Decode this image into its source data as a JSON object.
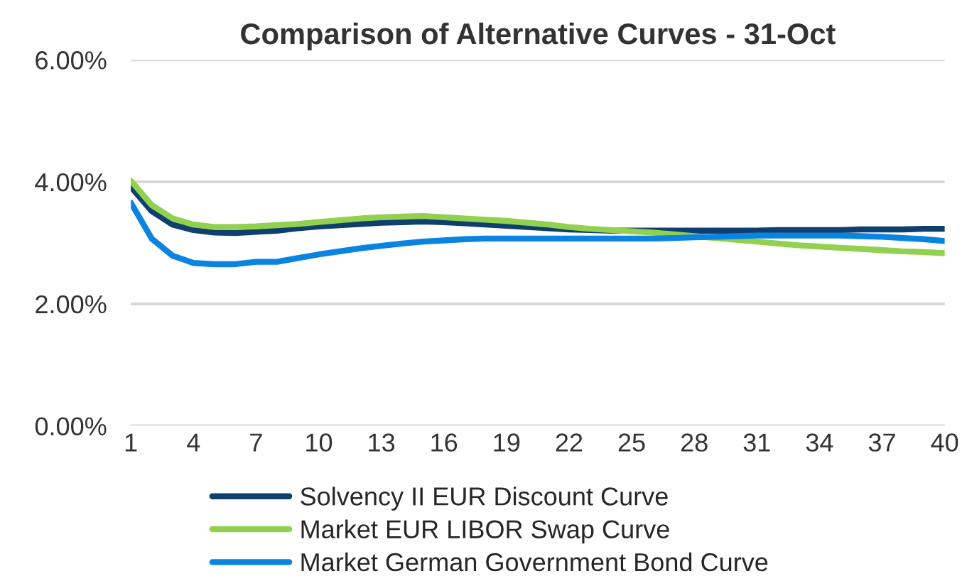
{
  "chart_data": {
    "type": "line",
    "title": "Comparison of Alternative Curves - 31-Oct",
    "categories": [
      "1",
      null,
      null,
      "4",
      null,
      null,
      "7",
      null,
      null,
      "10",
      null,
      null,
      "13",
      null,
      null,
      "16",
      null,
      null,
      "19",
      null,
      null,
      "22",
      null,
      null,
      "25",
      null,
      null,
      "28",
      null,
      null,
      "31",
      null,
      null,
      "34",
      null,
      null,
      "37",
      null,
      null,
      "40"
    ],
    "series": [
      {
        "name": "Solvency II EUR Discount Curve",
        "color": "#0e3f6e",
        "values": [
          3.92,
          3.52,
          3.3,
          3.21,
          3.17,
          3.16,
          3.18,
          3.2,
          3.24,
          3.27,
          3.29,
          3.31,
          3.33,
          3.34,
          3.35,
          3.34,
          3.32,
          3.3,
          3.28,
          3.26,
          3.24,
          3.22,
          3.21,
          3.2,
          3.2,
          3.2,
          3.2,
          3.2,
          3.2,
          3.2,
          3.2,
          3.21,
          3.21,
          3.21,
          3.21,
          3.22,
          3.22,
          3.22,
          3.23,
          3.23
        ]
      },
      {
        "name": "Market EUR LIBOR Swap Curve",
        "color": "#92d050",
        "values": [
          4.02,
          3.62,
          3.4,
          3.3,
          3.26,
          3.26,
          3.27,
          3.29,
          3.31,
          3.34,
          3.37,
          3.4,
          3.42,
          3.43,
          3.44,
          3.42,
          3.4,
          3.38,
          3.36,
          3.33,
          3.3,
          3.26,
          3.23,
          3.21,
          3.19,
          3.17,
          3.14,
          3.11,
          3.08,
          3.05,
          3.02,
          2.99,
          2.96,
          2.94,
          2.92,
          2.9,
          2.88,
          2.86,
          2.85,
          2.83
        ]
      },
      {
        "name": "Market German Government Bond Curve",
        "color": "#0a84e0",
        "values": [
          3.66,
          3.07,
          2.79,
          2.67,
          2.65,
          2.65,
          2.69,
          2.69,
          2.75,
          2.81,
          2.86,
          2.91,
          2.95,
          2.99,
          3.02,
          3.04,
          3.06,
          3.07,
          3.07,
          3.07,
          3.07,
          3.07,
          3.07,
          3.07,
          3.07,
          3.07,
          3.08,
          3.09,
          3.1,
          3.11,
          3.12,
          3.12,
          3.12,
          3.12,
          3.12,
          3.11,
          3.1,
          3.08,
          3.06,
          3.03
        ]
      }
    ],
    "ylim": [
      0,
      6
    ],
    "yticks": [
      {
        "value": 0,
        "label": "0.00%"
      },
      {
        "value": 2,
        "label": "2.00%"
      },
      {
        "value": 4,
        "label": "4.00%"
      },
      {
        "value": 6,
        "label": "6.00%"
      }
    ],
    "grid": "y",
    "legend": "bottom",
    "marker": "none",
    "line_style": "solid"
  }
}
